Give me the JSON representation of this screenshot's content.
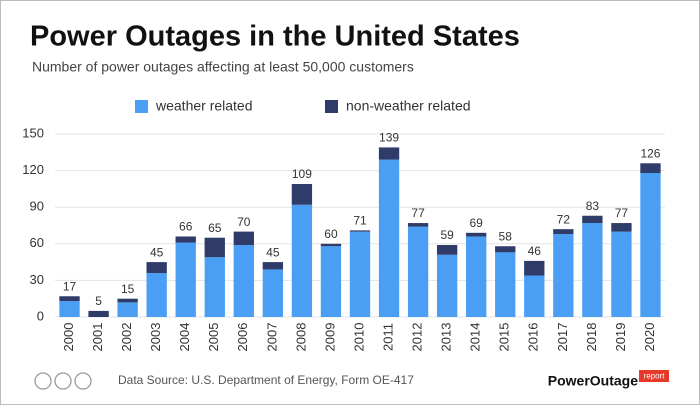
{
  "chart_data": {
    "type": "stacked-bar",
    "title": "Power Outages in the United States",
    "subtitle": "Number of power outages affecting at least 50,000 customers",
    "categories": [
      "2000",
      "2001",
      "2002",
      "2003",
      "2004",
      "2005",
      "2006",
      "2007",
      "2008",
      "2009",
      "2010",
      "2011",
      "2012",
      "2013",
      "2014",
      "2015",
      "2016",
      "2017",
      "2018",
      "2019",
      "2020"
    ],
    "series": [
      {
        "name": "weather related",
        "color": "#4a9ff5",
        "values": [
          13,
          0,
          12,
          36,
          61,
          49,
          59,
          39,
          92,
          58,
          70,
          129,
          74,
          51,
          66,
          53,
          34,
          68,
          77,
          70,
          118
        ]
      },
      {
        "name": "non-weather related",
        "color": "#2f3b68",
        "values": [
          4,
          5,
          3,
          9,
          5,
          16,
          11,
          6,
          17,
          2,
          1,
          10,
          3,
          8,
          3,
          5,
          12,
          4,
          6,
          7,
          8
        ]
      }
    ],
    "totals": [
      17,
      5,
      15,
      45,
      66,
      65,
      70,
      45,
      109,
      60,
      71,
      139,
      77,
      59,
      69,
      58,
      46,
      72,
      83,
      77,
      126
    ],
    "ylim": [
      0,
      150
    ],
    "yticks": [
      0,
      30,
      60,
      90,
      120,
      150
    ],
    "grid": true
  },
  "footer": {
    "source": "Data Source: U.S. Department of Energy, Form OE-417",
    "brand": "PowerOutage",
    "brand_tag": "report"
  }
}
